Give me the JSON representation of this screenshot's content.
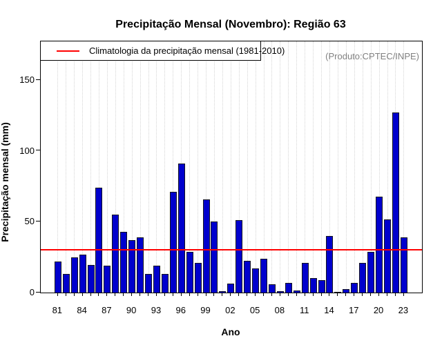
{
  "title": "Precipitação Mensal (Novembro): Região 63",
  "source_label": "(Produto:CPTEC/INPE)",
  "legend": {
    "label": "Climatologia da precipitação mensal (1981-2010)",
    "line_color": "#ff0000"
  },
  "chart_data": {
    "type": "bar",
    "title": "Precipitação Mensal (Novembro): Região 63",
    "xlabel": "Ano",
    "ylabel": "Precipitação mensal (mm)",
    "ylim": [
      0,
      177
    ],
    "yticks": [
      0,
      50,
      100,
      150
    ],
    "grid": "vertical-dotted-per-year",
    "legend_position": "top-left",
    "bar_color": "#0000CD",
    "climatology_value": 30,
    "climatology_color": "#ff0000",
    "categories": [
      "81",
      "82",
      "83",
      "84",
      "85",
      "86",
      "87",
      "88",
      "89",
      "90",
      "91",
      "92",
      "93",
      "94",
      "95",
      "96",
      "97",
      "98",
      "99",
      "00",
      "01",
      "02",
      "03",
      "04",
      "05",
      "06",
      "07",
      "08",
      "09",
      "10",
      "11",
      "12",
      "13",
      "14",
      "15",
      "16",
      "17",
      "18",
      "19",
      "20",
      "21",
      "22",
      "23"
    ],
    "label_every": 3,
    "values": [
      22,
      13,
      25,
      27,
      19.5,
      74,
      19,
      55,
      43,
      37,
      39,
      13,
      19,
      13,
      71,
      91,
      29,
      21,
      66,
      50,
      1,
      6.5,
      51,
      22.5,
      17,
      24,
      6,
      1,
      7,
      1.5,
      21,
      10.5,
      9,
      40,
      0.4,
      2.5,
      7,
      21,
      29,
      68,
      51.5,
      127,
      39
    ]
  }
}
